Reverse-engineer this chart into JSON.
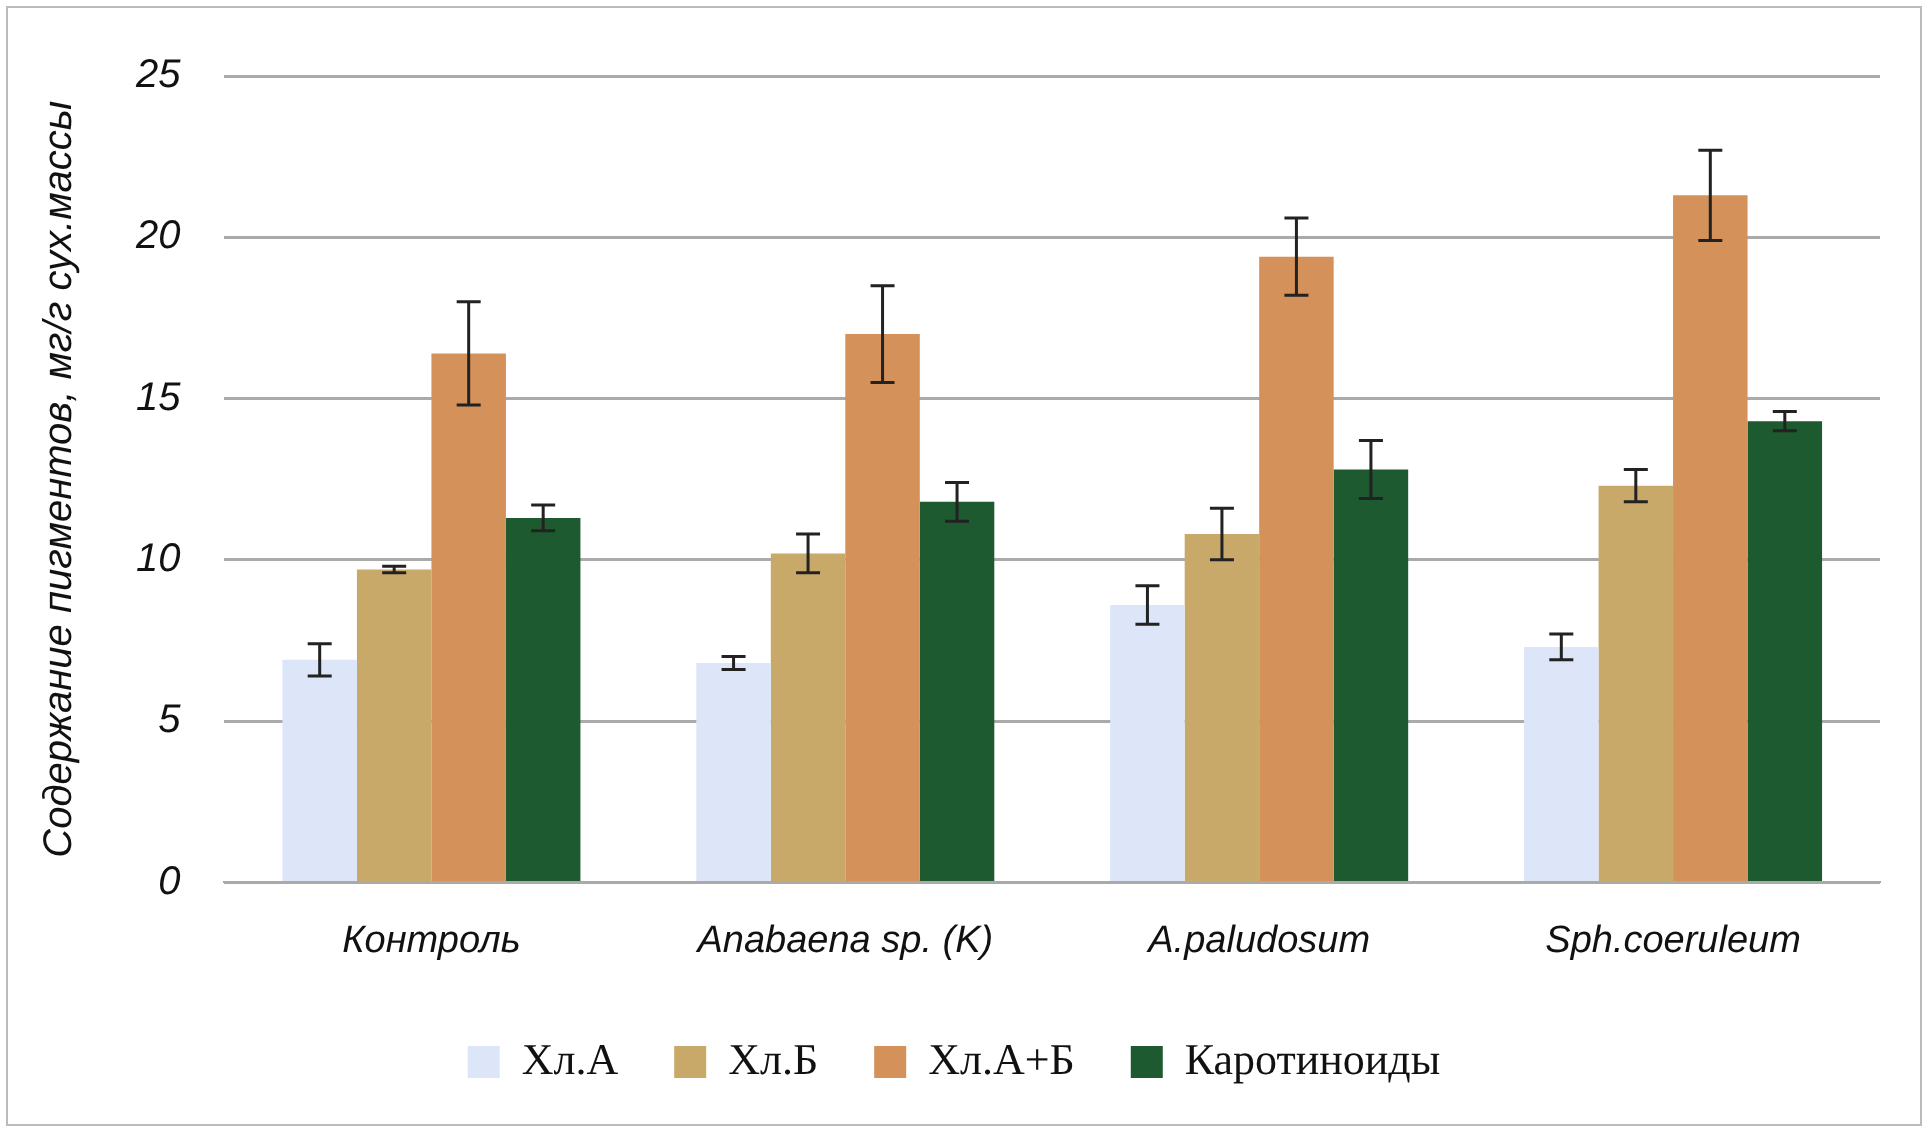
{
  "chart_data": {
    "type": "bar",
    "ylabel": "Содержание пигментов, мг/г сух.массы",
    "categories": [
      "Контроль",
      "Anabaena sp. (K)",
      "A.paludosum",
      "Sph.coeruleum"
    ],
    "series": [
      {
        "name": "Хл.А",
        "color": "#dce6f8",
        "values": [
          6.9,
          6.8,
          8.6,
          7.3
        ],
        "errors": [
          0.5,
          0.2,
          0.6,
          0.4
        ]
      },
      {
        "name": "Хл.Б",
        "color": "#c8a96a",
        "values": [
          9.7,
          10.2,
          10.8,
          12.3
        ],
        "errors": [
          0.1,
          0.6,
          0.8,
          0.5
        ]
      },
      {
        "name": "Хл.А+Б",
        "color": "#d4915a",
        "values": [
          16.4,
          17.0,
          19.4,
          21.3
        ],
        "errors": [
          1.6,
          1.5,
          1.2,
          1.4
        ]
      },
      {
        "name": "Каротиноиды",
        "color": "#1e5a30",
        "values": [
          11.3,
          11.8,
          12.8,
          14.3
        ],
        "errors": [
          0.4,
          0.6,
          0.9,
          0.3
        ]
      }
    ],
    "ylim": [
      0,
      25
    ],
    "yticks": [
      0,
      5,
      10,
      15,
      20,
      25
    ],
    "grid": "y",
    "legend": "bottom"
  }
}
